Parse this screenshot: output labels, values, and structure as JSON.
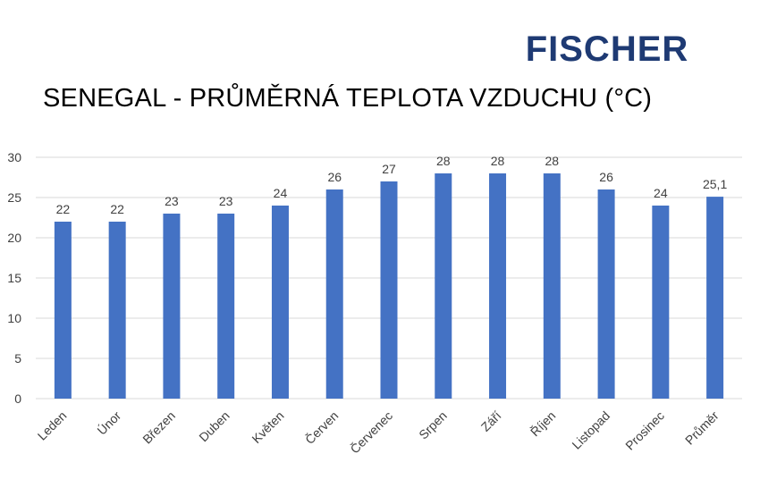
{
  "brand": {
    "name": "FISCHER",
    "color": "#1e3a73"
  },
  "chart_data": {
    "type": "bar",
    "title": "SENEGAL - PRŮMĚRNÁ TEPLOTA VZDUCHU (°C)",
    "categories": [
      "Leden",
      "Únor",
      "Březen",
      "Duben",
      "Květen",
      "Červen",
      "Červenec",
      "Srpen",
      "Září",
      "Říjen",
      "Listopad",
      "Prosinec",
      "Průměr"
    ],
    "values": [
      22,
      22,
      23,
      23,
      24,
      26,
      27,
      28,
      28,
      28,
      26,
      24,
      25.1
    ],
    "data_labels": [
      "22",
      "22",
      "23",
      "23",
      "24",
      "26",
      "27",
      "28",
      "28",
      "28",
      "26",
      "24",
      "25,1"
    ],
    "xlabel": "",
    "ylabel": "",
    "ylim": [
      0,
      30
    ],
    "yticks": [
      0,
      5,
      10,
      15,
      20,
      25,
      30
    ],
    "grid": true,
    "legend": "none",
    "bar_color": "#4472c4",
    "grid_color": "#d9d9d9",
    "text_color": "#404040"
  }
}
